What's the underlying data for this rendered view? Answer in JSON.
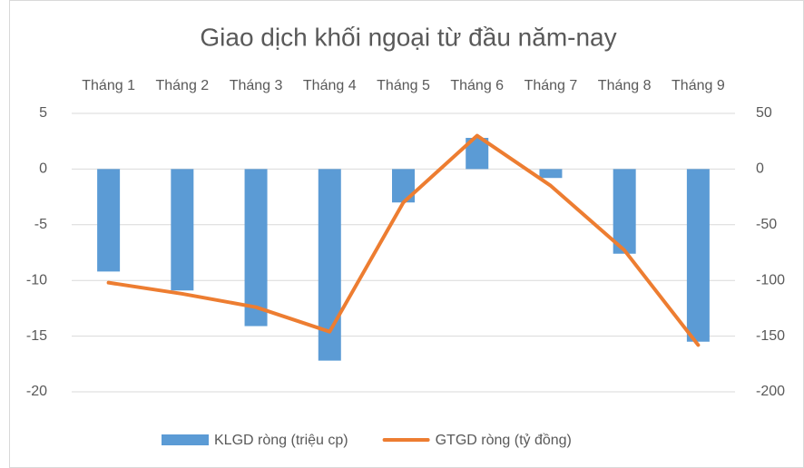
{
  "chart_data": {
    "type": "bar",
    "title": "Giao dịch khối ngoại từ đầu năm-nay",
    "categories": [
      "Tháng 1",
      "Tháng 2",
      "Tháng 3",
      "Tháng 4",
      "Tháng 5",
      "Tháng 6",
      "Tháng 7",
      "Tháng 8",
      "Tháng 9"
    ],
    "series": [
      {
        "name": "KLGD ròng (triệu cp)",
        "color": "#5b9bd5",
        "type": "bar",
        "axis": "y",
        "values": [
          -9.2,
          -10.9,
          -14.1,
          -17.2,
          -3.0,
          2.8,
          -0.8,
          -7.6,
          -15.5
        ]
      },
      {
        "name": "GTGD ròng (tỷ đồng)",
        "color": "#ed7d31",
        "type": "line",
        "axis": "y2",
        "values": [
          -102,
          -112,
          -124,
          -146,
          -30,
          30,
          -15,
          -73,
          -158
        ]
      }
    ],
    "ylim": [
      -20,
      5
    ],
    "yticks": [
      -20,
      -15,
      -10,
      -5,
      0,
      5
    ],
    "y2lim": [
      -200,
      50
    ],
    "y2ticks": [
      -200,
      -150,
      -100,
      -50,
      0,
      50
    ],
    "grid": true,
    "legend": "bottom"
  }
}
